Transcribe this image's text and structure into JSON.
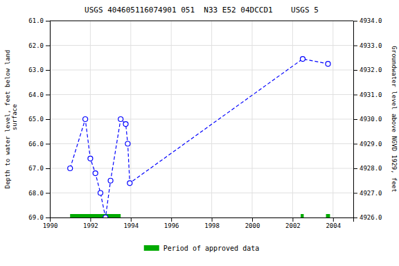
{
  "chart_data": {
    "type": "line",
    "title": "USGS 404605116074901 051  N33 E52 04DCCD1    USGS 5",
    "ylabel": "Depth to water level, feet below land\n surface",
    "y2label": "Groundwater level above NGVD 1929, feet",
    "xlim": [
      1990,
      2005
    ],
    "xticks": [
      1990,
      1992,
      1994,
      1996,
      1998,
      2000,
      2002,
      2004
    ],
    "ylim": [
      69.0,
      61.0
    ],
    "yticks": [
      {
        "value": 61.0,
        "label": "61.0"
      },
      {
        "value": 62.0,
        "label": "62.0"
      },
      {
        "value": 63.0,
        "label": "63.0"
      },
      {
        "value": 64.0,
        "label": "64.0"
      },
      {
        "value": 65.0,
        "label": "65.0"
      },
      {
        "value": 66.0,
        "label": "66.0"
      },
      {
        "value": 67.0,
        "label": "67.0"
      },
      {
        "value": 68.0,
        "label": "68.0"
      },
      {
        "value": 69.0,
        "label": "69.0"
      }
    ],
    "y2lim": [
      4926.0,
      4934.0
    ],
    "y2ticks": [
      {
        "value": 4926.0,
        "label": "4926.0"
      },
      {
        "value": 4927.0,
        "label": "4927.0"
      },
      {
        "value": 4928.0,
        "label": "4928.0"
      },
      {
        "value": 4929.0,
        "label": "4929.0"
      },
      {
        "value": 4930.0,
        "label": "4930.0"
      },
      {
        "value": 4931.0,
        "label": "4931.0"
      },
      {
        "value": 4932.0,
        "label": "4932.0"
      },
      {
        "value": 4933.0,
        "label": "4933.0"
      },
      {
        "value": 4934.0,
        "label": "4934.0"
      }
    ],
    "grid": true,
    "legend": "bottom",
    "x": [
      1991.0,
      1991.75,
      1992.0,
      1992.25,
      1992.5,
      1992.75,
      1993.0,
      1993.5,
      1993.75,
      1993.85,
      1993.95,
      2002.5,
      2003.75
    ],
    "series": [
      {
        "color": "#0000FF",
        "marker": "circle",
        "line_style": "dashed",
        "values": [
          67.0,
          65.0,
          66.6,
          67.2,
          68.0,
          69.0,
          67.5,
          65.0,
          65.2,
          66.0,
          67.6,
          62.55,
          62.75
        ]
      }
    ],
    "periods": [
      {
        "name": "Period of approved data",
        "color": "#00aa00",
        "ranges": [
          [
            1991.0,
            1993.5
          ],
          [
            2002.4,
            2002.55
          ],
          [
            2003.65,
            2003.85
          ]
        ]
      }
    ]
  }
}
